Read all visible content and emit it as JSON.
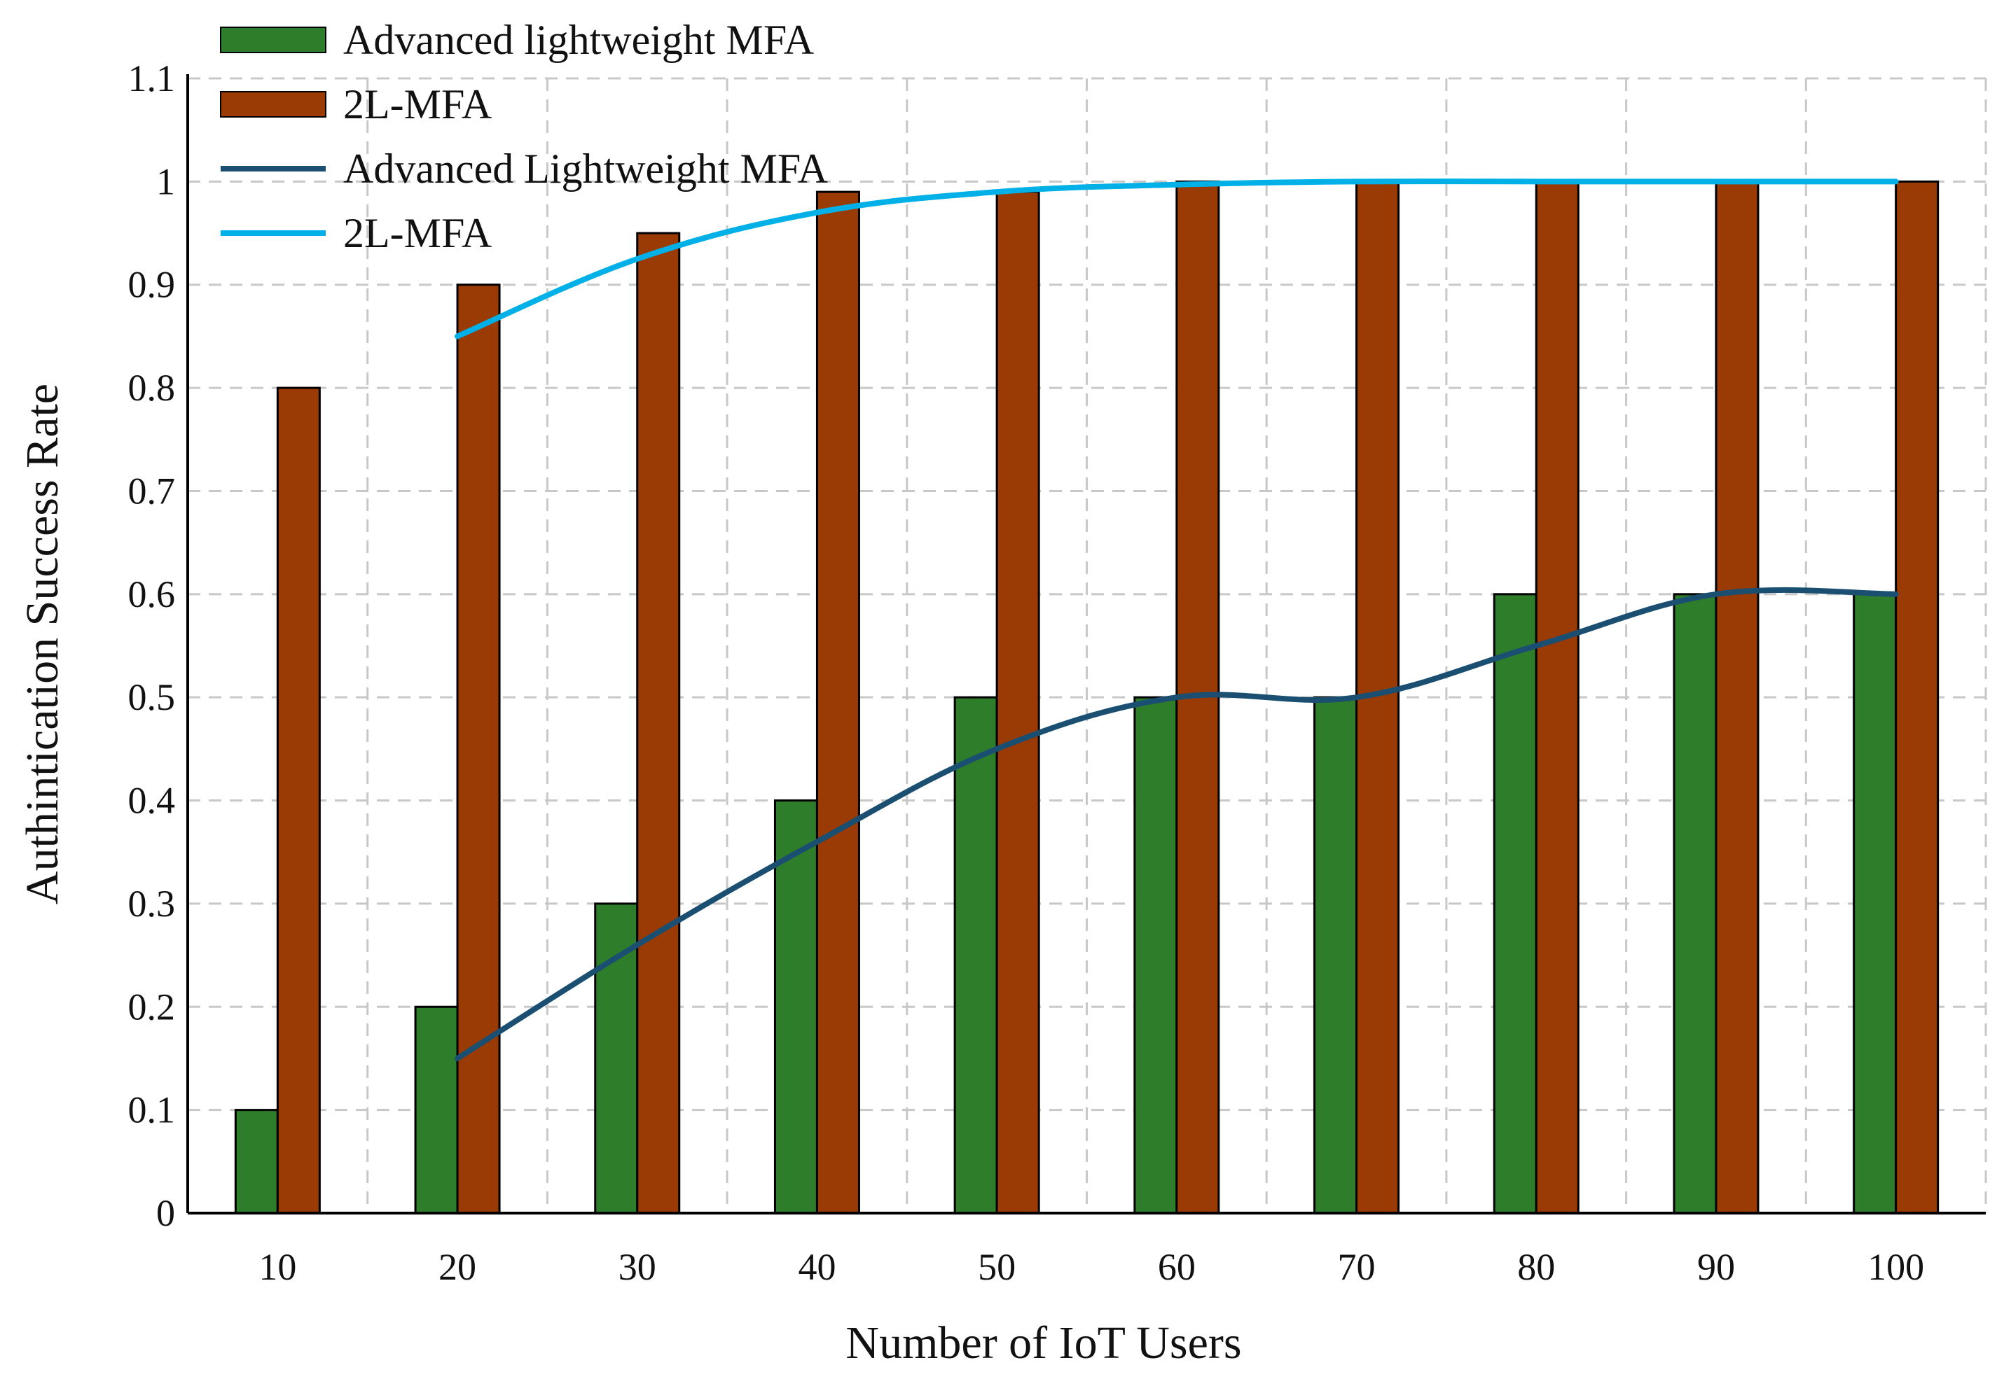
{
  "chart_data": {
    "type": "bar",
    "title": "",
    "xlabel": "Number of IoT Users",
    "ylabel": "Authintication Success Rate",
    "categories": [
      "10",
      "20",
      "30",
      "40",
      "50",
      "60",
      "70",
      "80",
      "90",
      "100"
    ],
    "ylim": [
      0,
      1.1
    ],
    "yticks": [
      "0",
      "0.1",
      "0.2",
      "0.3",
      "0.4",
      "0.5",
      "0.6",
      "0.7",
      "0.8",
      "0.9",
      "1",
      "1.1"
    ],
    "grid": true,
    "legend_position": "top-left",
    "colors": {
      "bar_advanced": "#2e7d2a",
      "bar_2lmfa": "#9a3a05",
      "line_advanced": "#1a4f72",
      "line_2lmfa": "#00b0e6",
      "grid": "#c8c8c8",
      "axis": "#000000"
    },
    "series": [
      {
        "name": "Advanced lightweight MFA",
        "kind": "bar",
        "values": [
          0.1,
          0.2,
          0.3,
          0.4,
          0.5,
          0.5,
          0.5,
          0.6,
          0.6,
          0.6
        ]
      },
      {
        "name": "2L-MFA",
        "kind": "bar",
        "values": [
          0.8,
          0.9,
          0.95,
          0.99,
          0.99,
          1.0,
          1.0,
          1.0,
          1.0,
          1.0
        ]
      },
      {
        "name": "Advanced Lightweight MFA",
        "kind": "line",
        "x": [
          20,
          30,
          40,
          50,
          60,
          70,
          80,
          90,
          100
        ],
        "values": [
          0.15,
          0.26,
          0.36,
          0.45,
          0.5,
          0.5,
          0.55,
          0.6,
          0.6
        ]
      },
      {
        "name": "2L-MFA",
        "kind": "line",
        "x": [
          20,
          30,
          40,
          50,
          60,
          70,
          80,
          90,
          100
        ],
        "values": [
          0.85,
          0.925,
          0.97,
          0.99,
          0.997,
          1.0,
          1.0,
          1.0,
          1.0
        ]
      }
    ]
  }
}
